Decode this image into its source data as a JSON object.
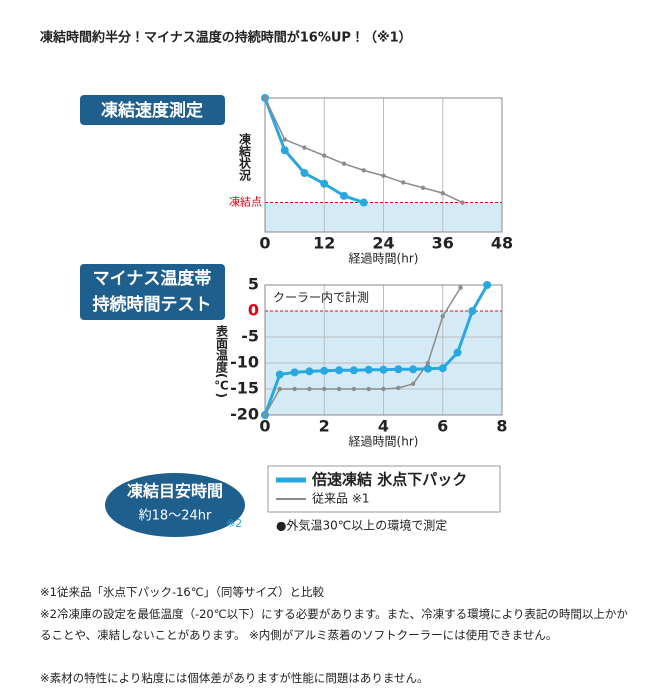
{
  "headline": "凍結時間約半分！マイナス温度の持続時間が16%UP！（※1）",
  "chart_data": [
    {
      "type": "line",
      "title": "凍結速度測定",
      "x_label": "経過時間(hr)",
      "y_label": "凍結状況",
      "xlim": [
        0,
        48
      ],
      "xticks": [
        0,
        12,
        24,
        36,
        48
      ],
      "ylim": [
        0,
        100
      ],
      "yticks": [],
      "grid": true,
      "freeze_line": {
        "value": 22,
        "label": "凍結点"
      },
      "freeze_color": "#e60012",
      "series": [
        {
          "color": "#29a8e0",
          "x": [
            0,
            4,
            8,
            12,
            16,
            20
          ],
          "values": [
            100,
            61,
            44,
            36,
            27,
            22
          ]
        },
        {
          "color": "#8c8c8c",
          "x": [
            0,
            4,
            8,
            12,
            16,
            20,
            24,
            28,
            32,
            36,
            40
          ],
          "values": [
            100,
            69,
            63,
            57,
            51,
            46,
            42,
            37,
            33,
            29,
            22
          ]
        }
      ]
    },
    {
      "type": "line",
      "title": [
        "マイナス温度帯",
        "持続時間テスト"
      ],
      "x_label": "経過時間(hr)",
      "y_label": "表面温度(℃)",
      "annotation": "クーラー内で計測",
      "xlim": [
        0,
        8
      ],
      "xticks": [
        0,
        2,
        4,
        6,
        8
      ],
      "ylim": [
        -20,
        5
      ],
      "yticks": [
        5,
        0,
        -5,
        -10,
        -15,
        -20
      ],
      "grid": true,
      "freeze_line": {
        "value": 0
      },
      "freeze_color": "#e60012",
      "series": [
        {
          "name": "倍速凍結 氷点下パック",
          "color": "#29a8e0",
          "x": [
            0,
            0.5,
            1,
            1.5,
            2,
            2.5,
            3,
            3.5,
            4,
            4.5,
            5,
            5.5,
            6,
            6.5,
            7,
            7.5
          ],
          "values": [
            -20,
            -12.2,
            -11.8,
            -11.6,
            -11.5,
            -11.4,
            -11.4,
            -11.3,
            -11.3,
            -11.2,
            -11.2,
            -11.1,
            -11,
            -8,
            0,
            5
          ]
        },
        {
          "name": "従来品 ※1",
          "color": "#8c8c8c",
          "x": [
            0,
            0.5,
            1,
            1.5,
            2,
            2.5,
            3,
            3.5,
            4,
            4.5,
            5,
            5.5,
            6,
            6.6
          ],
          "values": [
            -20,
            -15,
            -15,
            -15,
            -15,
            -15,
            -15,
            -15,
            -15,
            -14.8,
            -14,
            -10,
            -1,
            4.5
          ]
        }
      ]
    }
  ],
  "badge": {
    "title": "凍結目安時間",
    "subtitle": "約18〜24hr",
    "note": "※2"
  },
  "condition": "●外気温30℃以上の環境で測定",
  "footnotes": [
    "※1従来品「氷点下パック-16℃」（同等サイズ）と比較",
    "※2冷凍庫の設定を最低温度（-20℃以下）にする必要があります。また、冷凍する環境により表記の時間以上かかることや、凍結しないことがあります。 ※内側がアルミ蒸着のソフトクーラーには使用できません。",
    "※素材の特性により粘度には個体差がありますが性能に問題はありません。"
  ]
}
